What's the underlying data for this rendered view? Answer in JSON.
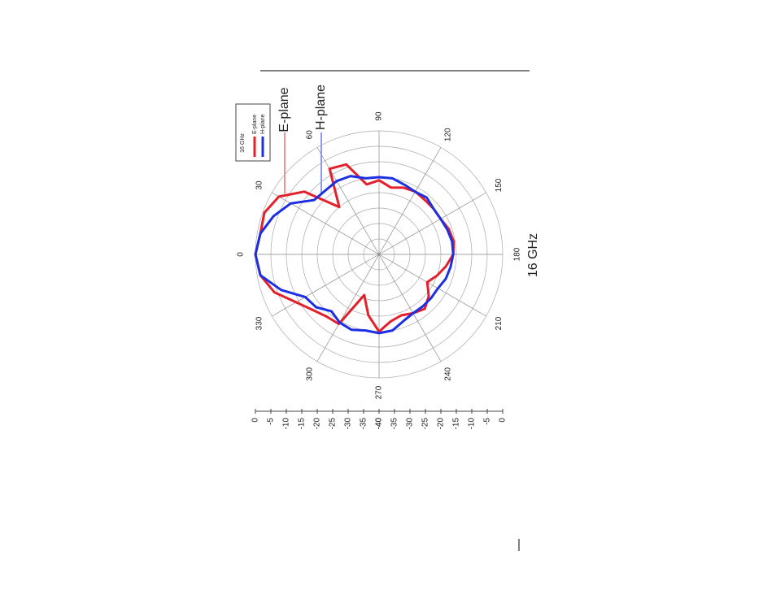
{
  "chart_data": {
    "type": "polar",
    "annotations": {
      "e_plane": "E-plane",
      "h_plane": "H-plane",
      "frequency": "16 GHz"
    },
    "legend_title": "16 GHz",
    "x": [
      0,
      10,
      20,
      30,
      40,
      50,
      60,
      70,
      80,
      90,
      100,
      110,
      120,
      130,
      140,
      150,
      160,
      170,
      180,
      190,
      200,
      210,
      220,
      230,
      240,
      250,
      260,
      270,
      280,
      290,
      300,
      310,
      320,
      330,
      340,
      350
    ],
    "series": [
      {
        "name": "E-plane",
        "color": "#e3202b",
        "values": [
          0,
          -1,
          -0.5,
          -2.6,
          -8.4,
          -20,
          -8,
          -9,
          -17,
          -16,
          -18,
          -17,
          -16.5,
          -17,
          -17,
          -17,
          -16,
          -15.5,
          -16,
          -18,
          -20,
          -22,
          -19,
          -17,
          -18,
          -19,
          -18,
          -15,
          -20,
          -26,
          -14,
          -13.7,
          -12,
          -9,
          -4,
          -1
        ]
      },
      {
        "name": "H-plane",
        "color": "#1c2fe3",
        "values": [
          0,
          -1,
          -3.7,
          -7,
          -12.6,
          -13,
          -12.6,
          -13,
          -15,
          -15,
          -15,
          -16,
          -16.6,
          -16,
          -17,
          -17,
          -16.5,
          -16,
          -16,
          -16.5,
          -17,
          -18,
          -18,
          -18,
          -18,
          -17,
          -15,
          -14.5,
          -15,
          -14,
          -14.5,
          -16,
          -13.4,
          -12.4,
          -6.3,
          -1
        ]
      }
    ],
    "rlim": [
      -40,
      0
    ],
    "rticks": [
      0,
      -5,
      -10,
      -15,
      -20,
      -25,
      -30,
      -35,
      -40
    ],
    "thetaticks": [
      0,
      30,
      60,
      90,
      120,
      150,
      180,
      210,
      240,
      270,
      300,
      330
    ],
    "grid": true
  }
}
